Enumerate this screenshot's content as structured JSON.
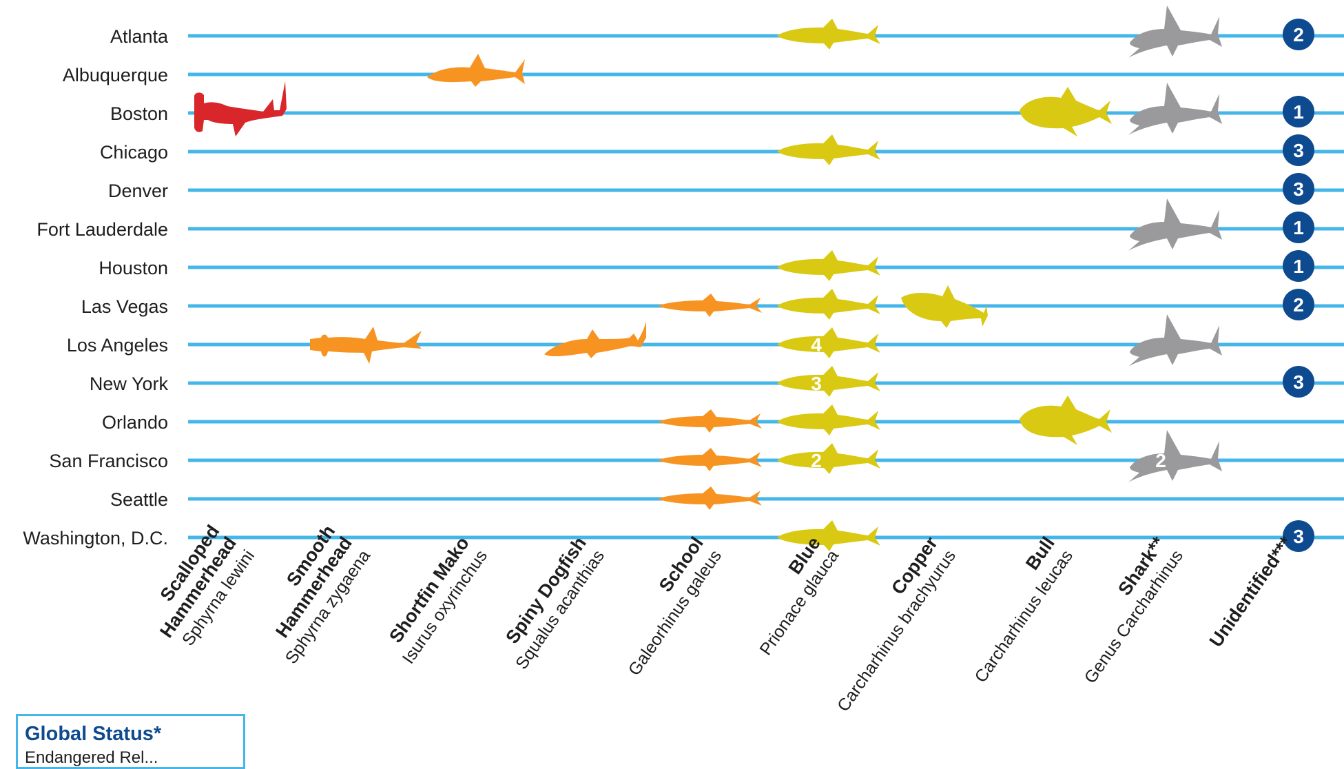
{
  "colors": {
    "row_line": "#45b6e9",
    "endangered": "#d9262a",
    "vulnerable": "#f79421",
    "near_threatened": "#d9c912",
    "not_evaluated": "#9a9a9c",
    "count_badge": "#0d4a8f"
  },
  "legend": {
    "title": "Global Status*",
    "subtitle": "Endangered   Rel..."
  },
  "chart_data": {
    "type": "table",
    "cities": [
      "Atlanta",
      "Albuquerque",
      "Boston",
      "Chicago",
      "Denver",
      "Fort Lauderdale",
      "Houston",
      "Las Vegas",
      "Los Angeles",
      "New York",
      "Orlando",
      "San Francisco",
      "Seattle",
      "Washington, D.C."
    ],
    "species": [
      {
        "common": [
          "Scalloped",
          "Hammerhead"
        ],
        "scientific": "Sphyrna lewini",
        "status": "endangered",
        "shape": "hammerhead-down"
      },
      {
        "common": [
          "Smooth",
          "Hammerhead"
        ],
        "scientific": "Sphyrna zygaena",
        "status": "vulnerable",
        "shape": "hammerhead"
      },
      {
        "common": [
          "Shortfin Mako"
        ],
        "scientific": "Isurus oxyrinchus",
        "status": "vulnerable",
        "shape": "mako"
      },
      {
        "common": [
          "Spiny Dogfish"
        ],
        "scientific": "Squalus acanthias",
        "status": "vulnerable",
        "shape": "dogfish"
      },
      {
        "common": [
          "School"
        ],
        "scientific": "Galeorhinus galeus",
        "status": "vulnerable",
        "shape": "slim"
      },
      {
        "common": [
          "Blue"
        ],
        "scientific": "Prionace glauca",
        "status": "near_threatened",
        "shape": "blue"
      },
      {
        "common": [
          "Copper"
        ],
        "scientific": "Carcharhinus brachyurus",
        "status": "near_threatened",
        "shape": "copper"
      },
      {
        "common": [
          "Bull"
        ],
        "scientific": "Carcharhinus leucas",
        "status": "near_threatened",
        "shape": "bull"
      },
      {
        "common": [
          "Shark**"
        ],
        "scientific": "Genus Carcharhinus",
        "status": "not_evaluated",
        "shape": "genus"
      },
      {
        "common": [
          "Unidentified***"
        ],
        "scientific": "",
        "status": "none",
        "shape": "badge"
      }
    ],
    "samples": [
      {
        "city": "Atlanta",
        "species": "Blue",
        "count": 1
      },
      {
        "city": "Atlanta",
        "species": "Shark**",
        "count": 1
      },
      {
        "city": "Atlanta",
        "species": "Unidentified***",
        "count": 2
      },
      {
        "city": "Albuquerque",
        "species": "Shortfin Mako",
        "count": 1
      },
      {
        "city": "Boston",
        "species": "Scalloped",
        "count": 1
      },
      {
        "city": "Boston",
        "species": "Bull",
        "count": 1
      },
      {
        "city": "Boston",
        "species": "Shark**",
        "count": 1
      },
      {
        "city": "Boston",
        "species": "Unidentified***",
        "count": 1
      },
      {
        "city": "Chicago",
        "species": "Blue",
        "count": 1
      },
      {
        "city": "Chicago",
        "species": "Unidentified***",
        "count": 3
      },
      {
        "city": "Denver",
        "species": "Unidentified***",
        "count": 3
      },
      {
        "city": "Fort Lauderdale",
        "species": "Shark**",
        "count": 1
      },
      {
        "city": "Fort Lauderdale",
        "species": "Unidentified***",
        "count": 1
      },
      {
        "city": "Houston",
        "species": "Blue",
        "count": 1
      },
      {
        "city": "Houston",
        "species": "Unidentified***",
        "count": 1
      },
      {
        "city": "Las Vegas",
        "species": "School",
        "count": 1
      },
      {
        "city": "Las Vegas",
        "species": "Blue",
        "count": 1
      },
      {
        "city": "Las Vegas",
        "species": "Copper",
        "count": 1
      },
      {
        "city": "Las Vegas",
        "species": "Unidentified***",
        "count": 2
      },
      {
        "city": "Los Angeles",
        "species": "Smooth",
        "count": 1
      },
      {
        "city": "Los Angeles",
        "species": "Spiny Dogfish",
        "count": 1
      },
      {
        "city": "Los Angeles",
        "species": "Blue",
        "count": 4
      },
      {
        "city": "Los Angeles",
        "species": "Shark**",
        "count": 1
      },
      {
        "city": "New York",
        "species": "Blue",
        "count": 3
      },
      {
        "city": "New York",
        "species": "Unidentified***",
        "count": 3
      },
      {
        "city": "Orlando",
        "species": "School",
        "count": 1
      },
      {
        "city": "Orlando",
        "species": "Blue",
        "count": 1
      },
      {
        "city": "Orlando",
        "species": "Bull",
        "count": 1
      },
      {
        "city": "San Francisco",
        "species": "School",
        "count": 1
      },
      {
        "city": "San Francisco",
        "species": "Blue",
        "count": 2
      },
      {
        "city": "San Francisco",
        "species": "Shark**",
        "count": 2
      },
      {
        "city": "Seattle",
        "species": "School",
        "count": 1
      },
      {
        "city": "Washington, D.C.",
        "species": "Blue",
        "count": 1
      },
      {
        "city": "Washington, D.C.",
        "species": "Unidentified***",
        "count": 3
      }
    ]
  }
}
